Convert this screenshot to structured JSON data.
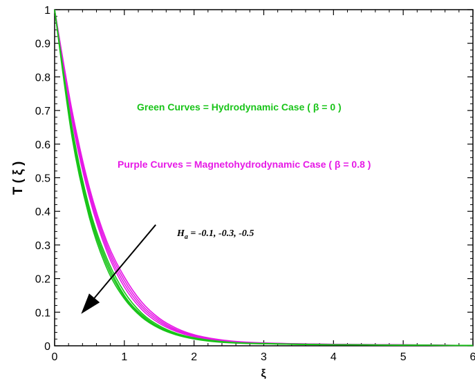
{
  "chart_data": {
    "type": "line",
    "xlabel": "ξ",
    "ylabel": "T ( ξ )",
    "xlim": [
      0,
      6
    ],
    "ylim": [
      0,
      1
    ],
    "xticks": [
      "0",
      "1",
      "2",
      "3",
      "4",
      "5",
      "6"
    ],
    "yticks": [
      "0",
      "0.1",
      "0.2",
      "0.3",
      "0.4",
      "0.5",
      "0.6",
      "0.7",
      "0.8",
      "0.9",
      "1"
    ],
    "grid": false,
    "x": [
      0,
      0.25,
      0.5,
      0.75,
      1,
      1.25,
      1.5,
      1.75,
      2,
      2.25,
      2.5,
      2.75,
      3,
      3.5,
      4,
      5,
      6
    ],
    "colors": {
      "green": "#19c419",
      "purple": "#e619e6"
    },
    "series": [
      {
        "group": "green",
        "values": [
          1,
          0.62,
          0.38,
          0.23,
          0.14,
          0.085,
          0.052,
          0.032,
          0.02,
          0.013,
          0.009,
          0.007,
          0.006,
          0.004,
          0.003,
          0.002,
          0.001
        ]
      },
      {
        "group": "green",
        "values": [
          1,
          0.63,
          0.39,
          0.24,
          0.145,
          0.088,
          0.054,
          0.033,
          0.021,
          0.014,
          0.0095,
          0.0072,
          0.0062,
          0.0042,
          0.0031,
          0.002,
          0.001
        ]
      },
      {
        "group": "green",
        "values": [
          1,
          0.64,
          0.4,
          0.25,
          0.15,
          0.092,
          0.056,
          0.035,
          0.022,
          0.015,
          0.01,
          0.0075,
          0.0065,
          0.0045,
          0.0033,
          0.0021,
          0.001
        ]
      },
      {
        "group": "green",
        "values": [
          1,
          0.65,
          0.41,
          0.26,
          0.16,
          0.097,
          0.06,
          0.037,
          0.024,
          0.016,
          0.011,
          0.008,
          0.007,
          0.005,
          0.0035,
          0.0022,
          0.001
        ]
      },
      {
        "group": "purple",
        "values": [
          1,
          0.67,
          0.44,
          0.28,
          0.175,
          0.108,
          0.067,
          0.042,
          0.027,
          0.018,
          0.012,
          0.009,
          0.007,
          0.005,
          0.004,
          0.0025,
          0.001
        ]
      },
      {
        "group": "purple",
        "values": [
          1,
          0.68,
          0.45,
          0.29,
          0.185,
          0.115,
          0.072,
          0.045,
          0.029,
          0.019,
          0.013,
          0.0095,
          0.0075,
          0.0055,
          0.004,
          0.0025,
          0.001
        ]
      },
      {
        "group": "purple",
        "values": [
          1,
          0.69,
          0.46,
          0.3,
          0.195,
          0.122,
          0.077,
          0.048,
          0.031,
          0.02,
          0.014,
          0.01,
          0.008,
          0.006,
          0.0045,
          0.003,
          0.001
        ]
      },
      {
        "group": "purple",
        "values": [
          1,
          0.7,
          0.47,
          0.31,
          0.205,
          0.13,
          0.082,
          0.052,
          0.033,
          0.022,
          0.015,
          0.011,
          0.0085,
          0.006,
          0.0045,
          0.003,
          0.001
        ]
      }
    ],
    "annotations": {
      "green_note": "Green Curves = Hydrodynamic Case ( β = 0 )",
      "purple_note": "Purple Curves = Magnetohydrodynamic Case ( β = 0.8 )",
      "ha_symbol": "H",
      "ha_subscript": "a",
      "ha_values": " = -0.1, -0.3, -0.5"
    },
    "arrow": {
      "from": [
        1.45,
        0.36
      ],
      "to": [
        0.38,
        0.095
      ]
    }
  }
}
